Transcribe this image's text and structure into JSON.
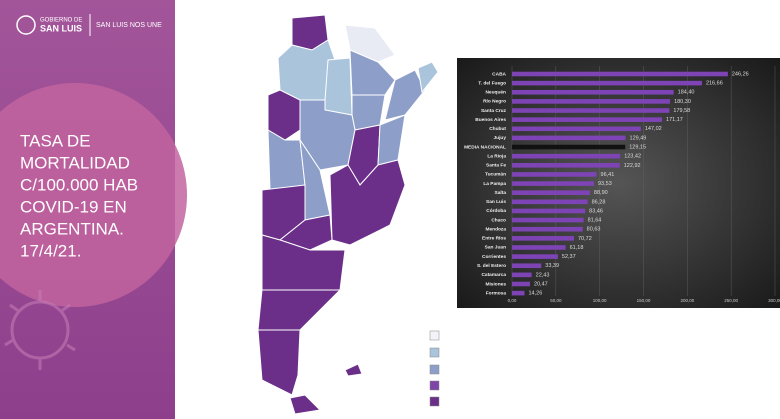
{
  "header": {
    "org_line1": "GOBIERNO DE",
    "org_line2": "SAN LUIS",
    "slogan": "SAN LUIS NOS UNE"
  },
  "slide_title": [
    "TASA DE",
    "MORTALIDAD",
    "C/100.000 HAB",
    "COVID-19 EN",
    "ARGENTINA.",
    "17/4/21."
  ],
  "chart_data": {
    "type": "hbar",
    "categories": [
      "CABA",
      "T. del Fuego",
      "Neuquén",
      "Río Negro",
      "Santa Cruz",
      "Buenos Aires",
      "Chubut",
      "Jujuy",
      "MEDIA NACIONAL",
      "La Rioja",
      "Santa Fe",
      "Tucumán",
      "La Pampa",
      "Salta",
      "San Luis",
      "Córdoba",
      "Chaco",
      "Mendoza",
      "Entre Ríos",
      "San Juan",
      "Corrientes",
      "S. del Estero",
      "Catamarca",
      "Misiones",
      "Formosa"
    ],
    "values": [
      246.26,
      216.66,
      184.4,
      180.3,
      179.58,
      171.17,
      147.02,
      129.49,
      129.15,
      123.42,
      122.92,
      96.41,
      93.53,
      88.9,
      86.28,
      83.46,
      81.64,
      80.63,
      70.72,
      61.18,
      52.37,
      33.39,
      22.43,
      20.47,
      14.26
    ],
    "value_labels": [
      "246,26",
      "216,66",
      "184,40",
      "180,30",
      "179,58",
      "171,17",
      "147,02",
      "129,49",
      "129,15",
      "123,42",
      "122,92",
      "96,41",
      "93,53",
      "88,90",
      "86,28",
      "83,46",
      "81,64",
      "80,63",
      "70,72",
      "61,18",
      "52,37",
      "33,39",
      "22,43",
      "20,47",
      "14,26"
    ],
    "colors": [
      "#7e44b5",
      "#7e44b5",
      "#7e44b5",
      "#7e44b5",
      "#7e44b5",
      "#7e44b5",
      "#7e44b5",
      "#7e44b5",
      "#111111",
      "#7e44b5",
      "#7e44b5",
      "#7e44b5",
      "#7e44b5",
      "#7e44b5",
      "#7e44b5",
      "#7e44b5",
      "#7e44b5",
      "#7e44b5",
      "#7e44b5",
      "#7e44b5",
      "#7e44b5",
      "#7e44b5",
      "#7e44b5",
      "#7e44b5",
      "#7e44b5"
    ],
    "xlim": [
      0,
      300
    ],
    "xticks": [
      {
        "value": 0,
        "label": "0,00"
      },
      {
        "value": 50,
        "label": "50,00"
      },
      {
        "value": 100,
        "label": "100,00"
      },
      {
        "value": 150,
        "label": "150,00"
      },
      {
        "value": 200,
        "label": "200,00"
      },
      {
        "value": 250,
        "label": "250,00"
      },
      {
        "value": 300,
        "label": "300,00"
      }
    ]
  }
}
